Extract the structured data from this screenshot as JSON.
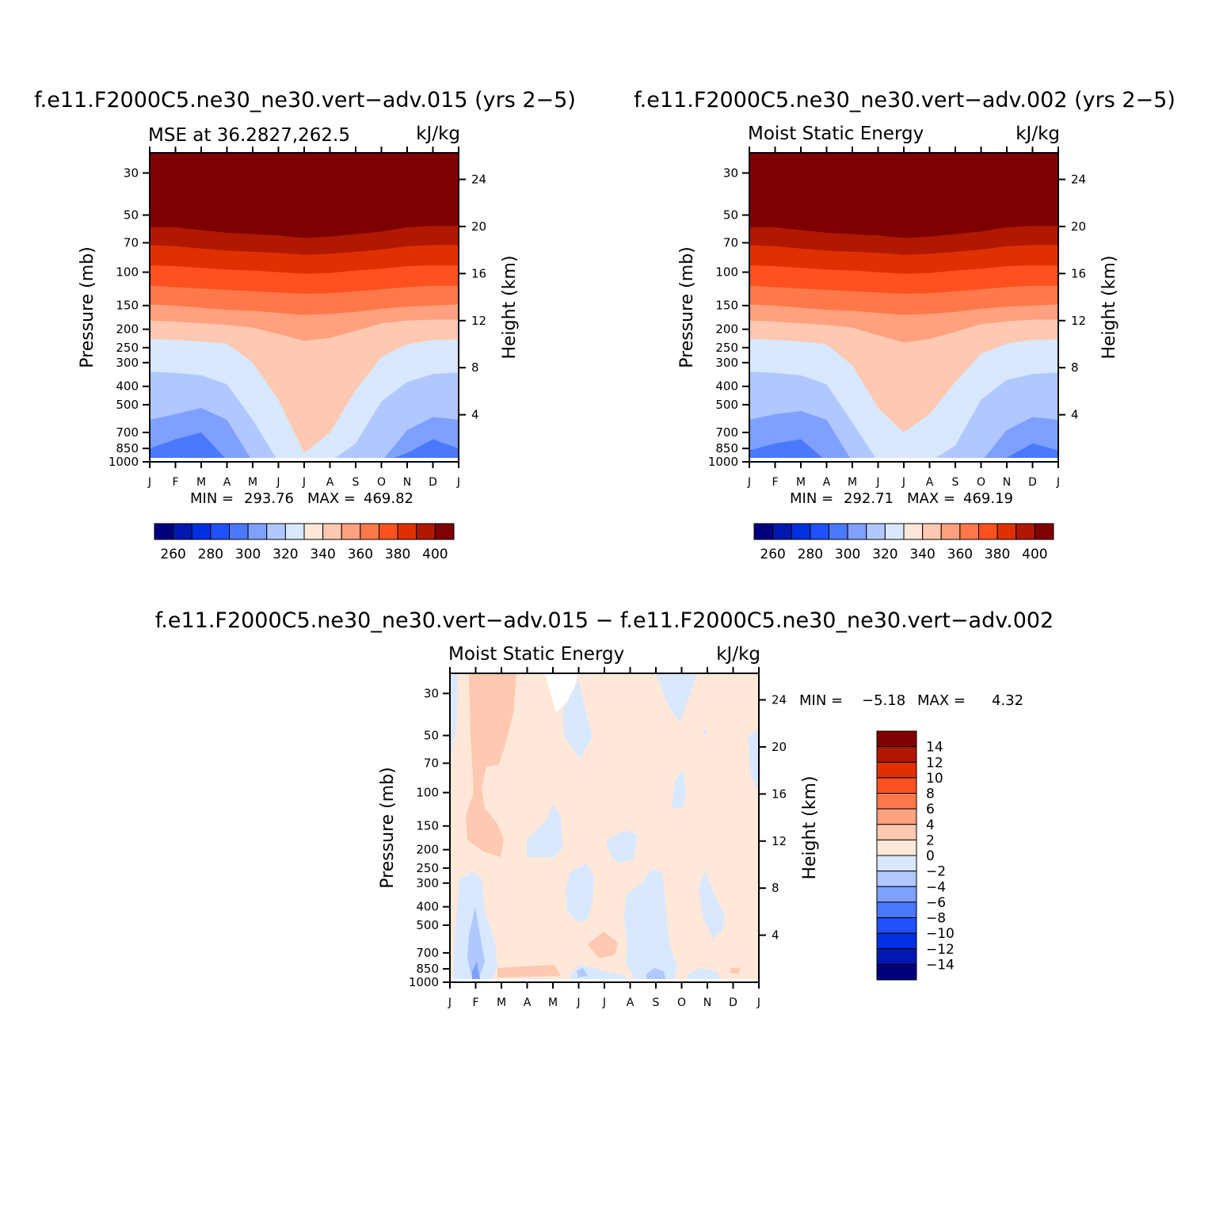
{
  "chart_data": [
    {
      "type": "contour",
      "panel": "top-left",
      "title": "f.e11.F2000C5.ne30_ne30.vert−adv.015 (yrs 2−5)",
      "left_string": "MSE at 36.2827,262.5",
      "right_string": "kJ/kg",
      "ylabel": "Pressure (mb)",
      "ylabel_right": "Height (km)",
      "x_ticks": [
        "J",
        "F",
        "M",
        "A",
        "M",
        "J",
        "J",
        "A",
        "S",
        "O",
        "N",
        "D",
        "J"
      ],
      "y_ticks": [
        30,
        50,
        70,
        100,
        150,
        200,
        250,
        300,
        400,
        500,
        700,
        850,
        1000
      ],
      "y_ticks_right": [
        24,
        20,
        16,
        12,
        8,
        4
      ],
      "min_label": "MIN =",
      "min": "293.76",
      "max_label": "MAX =",
      "max": "469.82",
      "colorbar_labels": [
        "260",
        "280",
        "300",
        "320",
        "340",
        "360",
        "380",
        "400"
      ],
      "levels": [
        260,
        270,
        280,
        290,
        300,
        310,
        320,
        330,
        340,
        350,
        360,
        370,
        380,
        390,
        400
      ],
      "colors": [
        "#00007f",
        "#0018b0",
        "#0030e0",
        "#2050ff",
        "#4a78ff",
        "#7fa0ff",
        "#b0c8ff",
        "#d8e8ff",
        "#ffe8d8",
        "#ffc8b0",
        "#ffa07f",
        "#ff784a",
        "#ff5020",
        "#e03000",
        "#b01800",
        "#7f0000"
      ],
      "contour_lines_p": [
        {
          "level": 400,
          "p": [
            58,
            58,
            60,
            62,
            63,
            64,
            66,
            65,
            63,
            61,
            58,
            57,
            57
          ]
        },
        {
          "level": 390,
          "p": [
            72,
            73,
            75,
            77,
            78,
            79,
            81,
            80,
            78,
            76,
            73,
            72,
            72
          ]
        },
        {
          "level": 380,
          "p": [
            92,
            93,
            95,
            97,
            98,
            100,
            102,
            101,
            98,
            96,
            93,
            92,
            92
          ]
        },
        {
          "level": 370,
          "p": [
            118,
            120,
            122,
            124,
            126,
            128,
            130,
            129,
            126,
            123,
            120,
            118,
            118
          ]
        },
        {
          "level": 360,
          "p": [
            148,
            150,
            154,
            158,
            160,
            164,
            168,
            166,
            162,
            156,
            152,
            150,
            148
          ]
        },
        {
          "level": 350,
          "p": [
            180,
            182,
            186,
            190,
            196,
            212,
            230,
            222,
            204,
            186,
            180,
            178,
            178
          ]
        },
        {
          "level": 340,
          "p": [
            225,
            228,
            232,
            238,
            300,
            470,
            900,
            700,
            420,
            280,
            240,
            228,
            226
          ]
        },
        {
          "level": 320,
          "p": [
            335,
            340,
            350,
            390,
            600,
            1000,
            1000,
            1000,
            800,
            480,
            380,
            345,
            338
          ]
        },
        {
          "level": 310,
          "p": [
            600,
            560,
            520,
            600,
            1000,
            1000,
            1000,
            1000,
            1000,
            1000,
            680,
            580,
            600
          ]
        },
        {
          "level": 300,
          "p": [
            850,
            760,
            700,
            980,
            1000,
            1000,
            1000,
            1000,
            1000,
            1000,
            900,
            760,
            850
          ]
        }
      ]
    },
    {
      "type": "contour",
      "panel": "top-right",
      "title": "f.e11.F2000C5.ne30_ne30.vert−adv.002 (yrs 2−5)",
      "left_string": "Moist Static Energy",
      "right_string": "kJ/kg",
      "ylabel": "Pressure (mb)",
      "ylabel_right": "Height (km)",
      "x_ticks": [
        "J",
        "F",
        "M",
        "A",
        "M",
        "J",
        "J",
        "A",
        "S",
        "O",
        "N",
        "D",
        "J"
      ],
      "y_ticks": [
        30,
        50,
        70,
        100,
        150,
        200,
        250,
        300,
        400,
        500,
        700,
        850,
        1000
      ],
      "y_ticks_right": [
        24,
        20,
        16,
        12,
        8,
        4
      ],
      "min_label": "MIN =",
      "min": "292.71",
      "max_label": "MAX =",
      "max": "469.19",
      "colorbar_labels": [
        "260",
        "280",
        "300",
        "320",
        "340",
        "360",
        "380",
        "400"
      ],
      "levels": [
        260,
        270,
        280,
        290,
        300,
        310,
        320,
        330,
        340,
        350,
        360,
        370,
        380,
        390,
        400
      ],
      "colors": [
        "#00007f",
        "#0018b0",
        "#0030e0",
        "#2050ff",
        "#4a78ff",
        "#7fa0ff",
        "#b0c8ff",
        "#d8e8ff",
        "#ffe8d8",
        "#ffc8b0",
        "#ffa07f",
        "#ff784a",
        "#ff5020",
        "#e03000",
        "#b01800",
        "#7f0000"
      ],
      "contour_lines_p": [
        {
          "level": 400,
          "p": [
            58,
            58,
            60,
            62,
            63,
            64,
            66,
            65,
            63,
            61,
            58,
            57,
            57
          ]
        },
        {
          "level": 390,
          "p": [
            72,
            73,
            75,
            77,
            78,
            79,
            81,
            80,
            78,
            76,
            73,
            72,
            72
          ]
        },
        {
          "level": 380,
          "p": [
            92,
            93,
            95,
            97,
            98,
            100,
            102,
            101,
            98,
            96,
            93,
            92,
            92
          ]
        },
        {
          "level": 370,
          "p": [
            118,
            120,
            122,
            124,
            126,
            128,
            130,
            129,
            126,
            123,
            120,
            118,
            118
          ]
        },
        {
          "level": 360,
          "p": [
            148,
            150,
            154,
            158,
            160,
            164,
            168,
            166,
            162,
            156,
            152,
            150,
            148
          ]
        },
        {
          "level": 350,
          "p": [
            180,
            182,
            186,
            190,
            196,
            215,
            235,
            225,
            206,
            188,
            182,
            178,
            178
          ]
        },
        {
          "level": 340,
          "p": [
            225,
            228,
            232,
            240,
            310,
            520,
            700,
            560,
            380,
            270,
            238,
            228,
            226
          ]
        },
        {
          "level": 320,
          "p": [
            335,
            340,
            350,
            390,
            620,
            1000,
            1000,
            1000,
            820,
            470,
            370,
            345,
            338
          ]
        },
        {
          "level": 310,
          "p": [
            600,
            560,
            540,
            600,
            1000,
            1000,
            1000,
            1000,
            1000,
            1000,
            680,
            580,
            600
          ]
        },
        {
          "level": 300,
          "p": [
            870,
            800,
            760,
            990,
            1000,
            1000,
            1000,
            1000,
            1000,
            1000,
            950,
            800,
            870
          ]
        }
      ]
    },
    {
      "type": "contour",
      "panel": "bottom",
      "title": "f.e11.F2000C5.ne30_ne30.vert−adv.015 − f.e11.F2000C5.ne30_ne30.vert−adv.002",
      "left_string": "Moist Static Energy",
      "right_string": "kJ/kg",
      "ylabel": "Pressure (mb)",
      "ylabel_right": "Height (km)",
      "x_ticks": [
        "J",
        "F",
        "M",
        "A",
        "M",
        "J",
        "J",
        "A",
        "S",
        "O",
        "N",
        "D",
        "J"
      ],
      "y_ticks": [
        30,
        50,
        70,
        100,
        150,
        200,
        250,
        300,
        400,
        500,
        700,
        850,
        1000
      ],
      "y_ticks_right": [
        24,
        20,
        16,
        12,
        8,
        4
      ],
      "min_label": "MIN =",
      "min": "−5.18",
      "max_label": "MAX =",
      "max": "4.32",
      "colorbar_labels": [
        "14",
        "12",
        "10",
        "8",
        "6",
        "4",
        "2",
        "0",
        "−2",
        "−4",
        "−6",
        "−8",
        "−10",
        "−12",
        "−14"
      ],
      "levels": [
        -14,
        -12,
        -10,
        -8,
        -6,
        -4,
        -2,
        0,
        2,
        4,
        6,
        8,
        10,
        12,
        14
      ],
      "colors": [
        "#00007f",
        "#0018b0",
        "#0030e0",
        "#2050ff",
        "#4a78ff",
        "#7fa0ff",
        "#b0c8ff",
        "#d8e8ff",
        "#ffe8d8",
        "#ffc8b0",
        "#ffa07f",
        "#ff784a",
        "#ff5020",
        "#e03000",
        "#b01800",
        "#7f0000"
      ],
      "background_range": "0 to 2"
    }
  ]
}
